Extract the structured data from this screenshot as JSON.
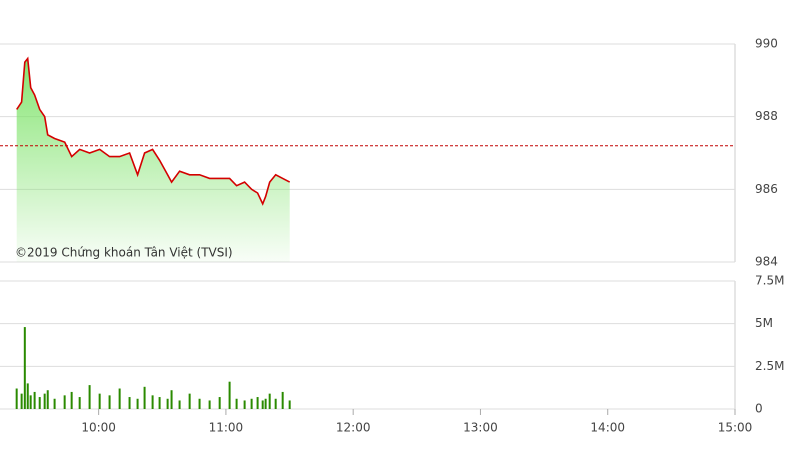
{
  "chart_data": [
    {
      "type": "area-line",
      "annotation": "©2019 Chứng khoán Tân Việt (TVSI)",
      "color": "#d40000",
      "fill_color": "#7ee36a",
      "x": [
        9.356,
        9.395,
        9.42,
        9.443,
        9.466,
        9.497,
        9.537,
        9.576,
        9.6,
        9.654,
        9.733,
        9.788,
        9.851,
        9.929,
        10.008,
        10.086,
        10.165,
        10.243,
        10.306,
        10.361,
        10.424,
        10.479,
        10.542,
        10.573,
        10.636,
        10.715,
        10.793,
        10.872,
        10.951,
        11.029,
        11.084,
        11.147,
        11.202,
        11.249,
        11.289,
        11.312,
        11.344,
        11.391,
        11.446,
        11.501
      ],
      "values": [
        988.2,
        988.4,
        989.5,
        989.6,
        988.8,
        988.6,
        988.2,
        988.0,
        987.5,
        987.4,
        987.3,
        986.9,
        987.1,
        987.0,
        987.1,
        986.9,
        986.9,
        987.0,
        986.4,
        987.0,
        987.1,
        986.8,
        986.4,
        986.2,
        986.5,
        986.4,
        986.4,
        986.3,
        986.3,
        986.3,
        986.1,
        986.2,
        986.0,
        985.9,
        985.6,
        985.8,
        986.2,
        986.4,
        986.3,
        986.2
      ],
      "reference": 987.2,
      "reference_color": "#c00000",
      "xlim": [
        9.225,
        15
      ],
      "ylim": [
        984,
        990
      ],
      "yticks": [
        984,
        986,
        988,
        990
      ],
      "grid": true
    },
    {
      "type": "bar",
      "color": "#2a8a00",
      "x": [
        9.356,
        9.395,
        9.42,
        9.443,
        9.466,
        9.497,
        9.537,
        9.576,
        9.6,
        9.654,
        9.733,
        9.788,
        9.851,
        9.929,
        10.008,
        10.086,
        10.165,
        10.243,
        10.306,
        10.361,
        10.424,
        10.479,
        10.542,
        10.573,
        10.636,
        10.715,
        10.793,
        10.872,
        10.951,
        11.029,
        11.084,
        11.147,
        11.202,
        11.249,
        11.289,
        11.312,
        11.344,
        11.391,
        11.446,
        11.501
      ],
      "values": [
        1200000,
        900000,
        4800000,
        1500000,
        800000,
        1000000,
        700000,
        900000,
        1100000,
        600000,
        800000,
        1000000,
        700000,
        1400000,
        900000,
        800000,
        1200000,
        700000,
        600000,
        1300000,
        800000,
        700000,
        600000,
        1100000,
        500000,
        900000,
        600000,
        500000,
        700000,
        1600000,
        600000,
        500000,
        600000,
        700000,
        500000,
        600000,
        900000,
        600000,
        1000000,
        500000
      ],
      "xlim": [
        9.225,
        15
      ],
      "xticks": [
        {
          "value": 10,
          "label": "10:00"
        },
        {
          "value": 11,
          "label": "11:00"
        },
        {
          "value": 12,
          "label": "12:00"
        },
        {
          "value": 13,
          "label": "13:00"
        },
        {
          "value": 14,
          "label": "14:00"
        },
        {
          "value": 15,
          "label": "15:00"
        }
      ],
      "ylim": [
        0,
        7500000
      ],
      "yticks": [
        0,
        {
          "value": 2500000,
          "label": "2.5M"
        },
        {
          "value": 5000000,
          "label": "5M"
        },
        {
          "value": 7500000,
          "label": "7.5M"
        }
      ],
      "grid": true
    }
  ]
}
